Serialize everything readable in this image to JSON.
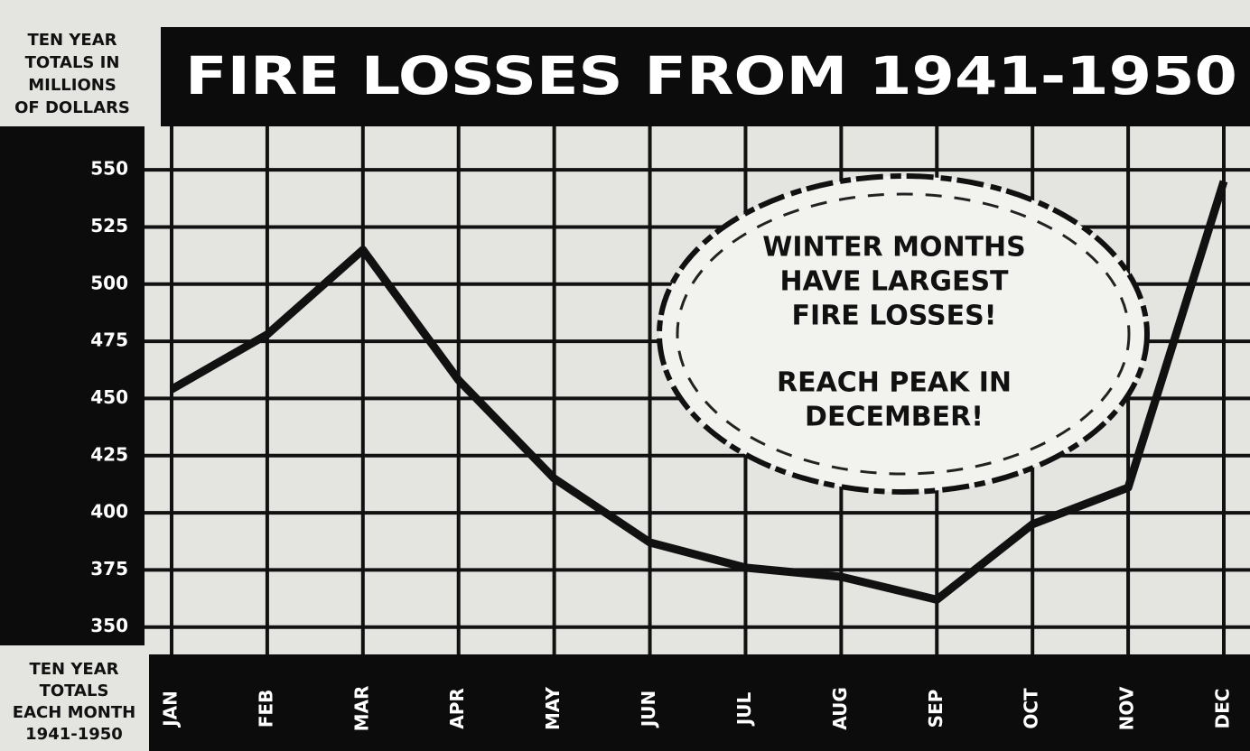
{
  "chart_data": {
    "type": "line",
    "title": "FIRE LOSSES FROM 1941-1950",
    "y_axis_label": [
      "TEN YEAR",
      "TOTALS IN",
      "MILLIONS",
      "OF DOLLARS"
    ],
    "x_axis_label": [
      "TEN YEAR",
      "TOTALS",
      "EACH MONTH",
      "1941-1950"
    ],
    "annotations": [
      [
        "WINTER MONTHS",
        "HAVE LARGEST",
        "FIRE LOSSES!"
      ],
      [
        "REACH PEAK IN",
        "DECEMBER!"
      ]
    ],
    "categories": [
      "JAN",
      "FEB",
      "MAR",
      "APR",
      "MAY",
      "JUN",
      "JUL",
      "AUG",
      "SEP",
      "OCT",
      "NOV",
      "DEC"
    ],
    "series": [
      {
        "color": "#111111",
        "values": [
          454,
          478,
          515,
          458,
          415,
          387,
          376,
          372,
          362,
          395,
          411,
          545
        ]
      }
    ],
    "ylim": [
      342,
      569
    ],
    "yticks": [
      350,
      375,
      400,
      425,
      450,
      475,
      500,
      525,
      550
    ],
    "grid": true
  }
}
